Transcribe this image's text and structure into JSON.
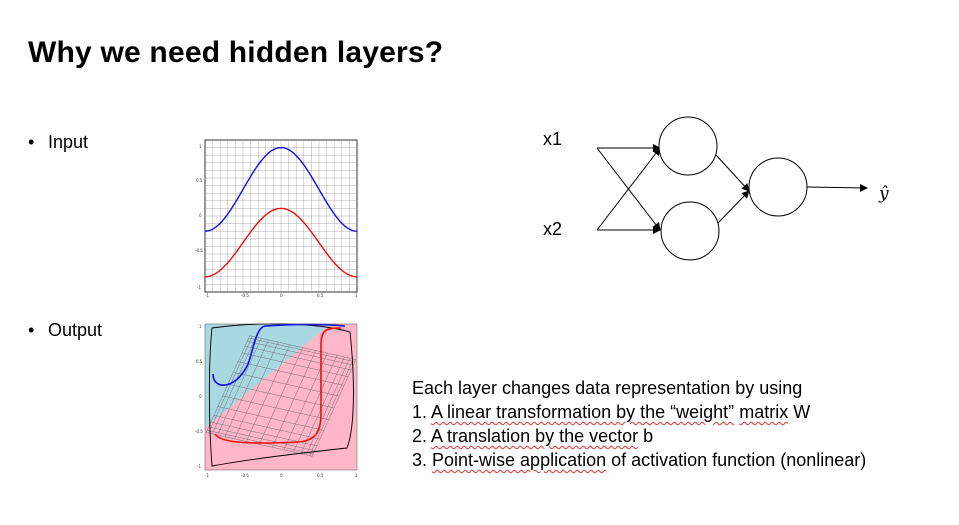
{
  "slide": {
    "title": "Why we need hidden layers?",
    "bullets": {
      "input": "Input",
      "output": "Output",
      "marker": "•"
    }
  },
  "input_plot": {
    "xticks": [
      "-1",
      "-0.5",
      "0",
      "0.5",
      "1"
    ],
    "yticks": [
      "1",
      "0.5",
      "0",
      "-0.5",
      "-1"
    ]
  },
  "output_plot": {
    "xticks": [
      "-1",
      "-0.5",
      "0",
      "0.5",
      "1"
    ],
    "yticks": [
      "1",
      "0.5",
      "0",
      "-0.5",
      "-1"
    ]
  },
  "network": {
    "input_labels": [
      "x1",
      "x2"
    ],
    "output_label": "ŷ"
  },
  "description": {
    "line0": "Each layer changes data representation by using",
    "line1": {
      "prefix": "1. ",
      "segments": [
        {
          "text": "A linear transformation by the “weight”",
          "wavy": true
        },
        {
          "text": " ",
          "wavy": false
        },
        {
          "text": "matrix",
          "wavy": true
        },
        {
          "text": " W",
          "wavy": false
        }
      ]
    },
    "line2": {
      "prefix": "2. ",
      "segments": [
        {
          "text": "A translation by the vector",
          "wavy": true
        },
        {
          "text": " b",
          "wavy": false
        }
      ]
    },
    "line3": {
      "prefix": "3. ",
      "segments": [
        {
          "text": "Point-wise application",
          "wavy": true
        },
        {
          "text": " of activation function (nonlinear)",
          "wavy": false
        }
      ]
    }
  },
  "colors": {
    "blue_curve": "#1010ee",
    "red_curve": "#ee1010",
    "region_blue": "#a9d8e3",
    "region_pink": "#ffb6c8",
    "grid": "#9a9a9a",
    "wavy_underline": "#e03030"
  }
}
